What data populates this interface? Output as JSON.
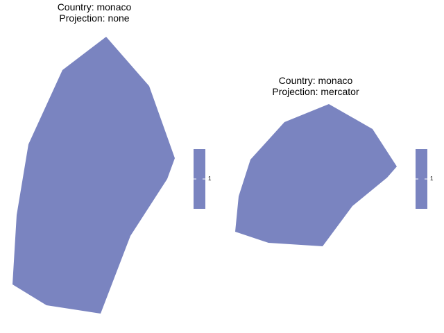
{
  "colors": {
    "fill": "#7a84c0",
    "background": "#ffffff",
    "tick": "#ffffff"
  },
  "panels": [
    {
      "title_line1": "Country: monaco",
      "title_line2": "Projection: none",
      "legend_label": "1"
    },
    {
      "title_line1": "Country: monaco",
      "title_line2": "Projection: mercator",
      "legend_label": "1"
    }
  ]
}
